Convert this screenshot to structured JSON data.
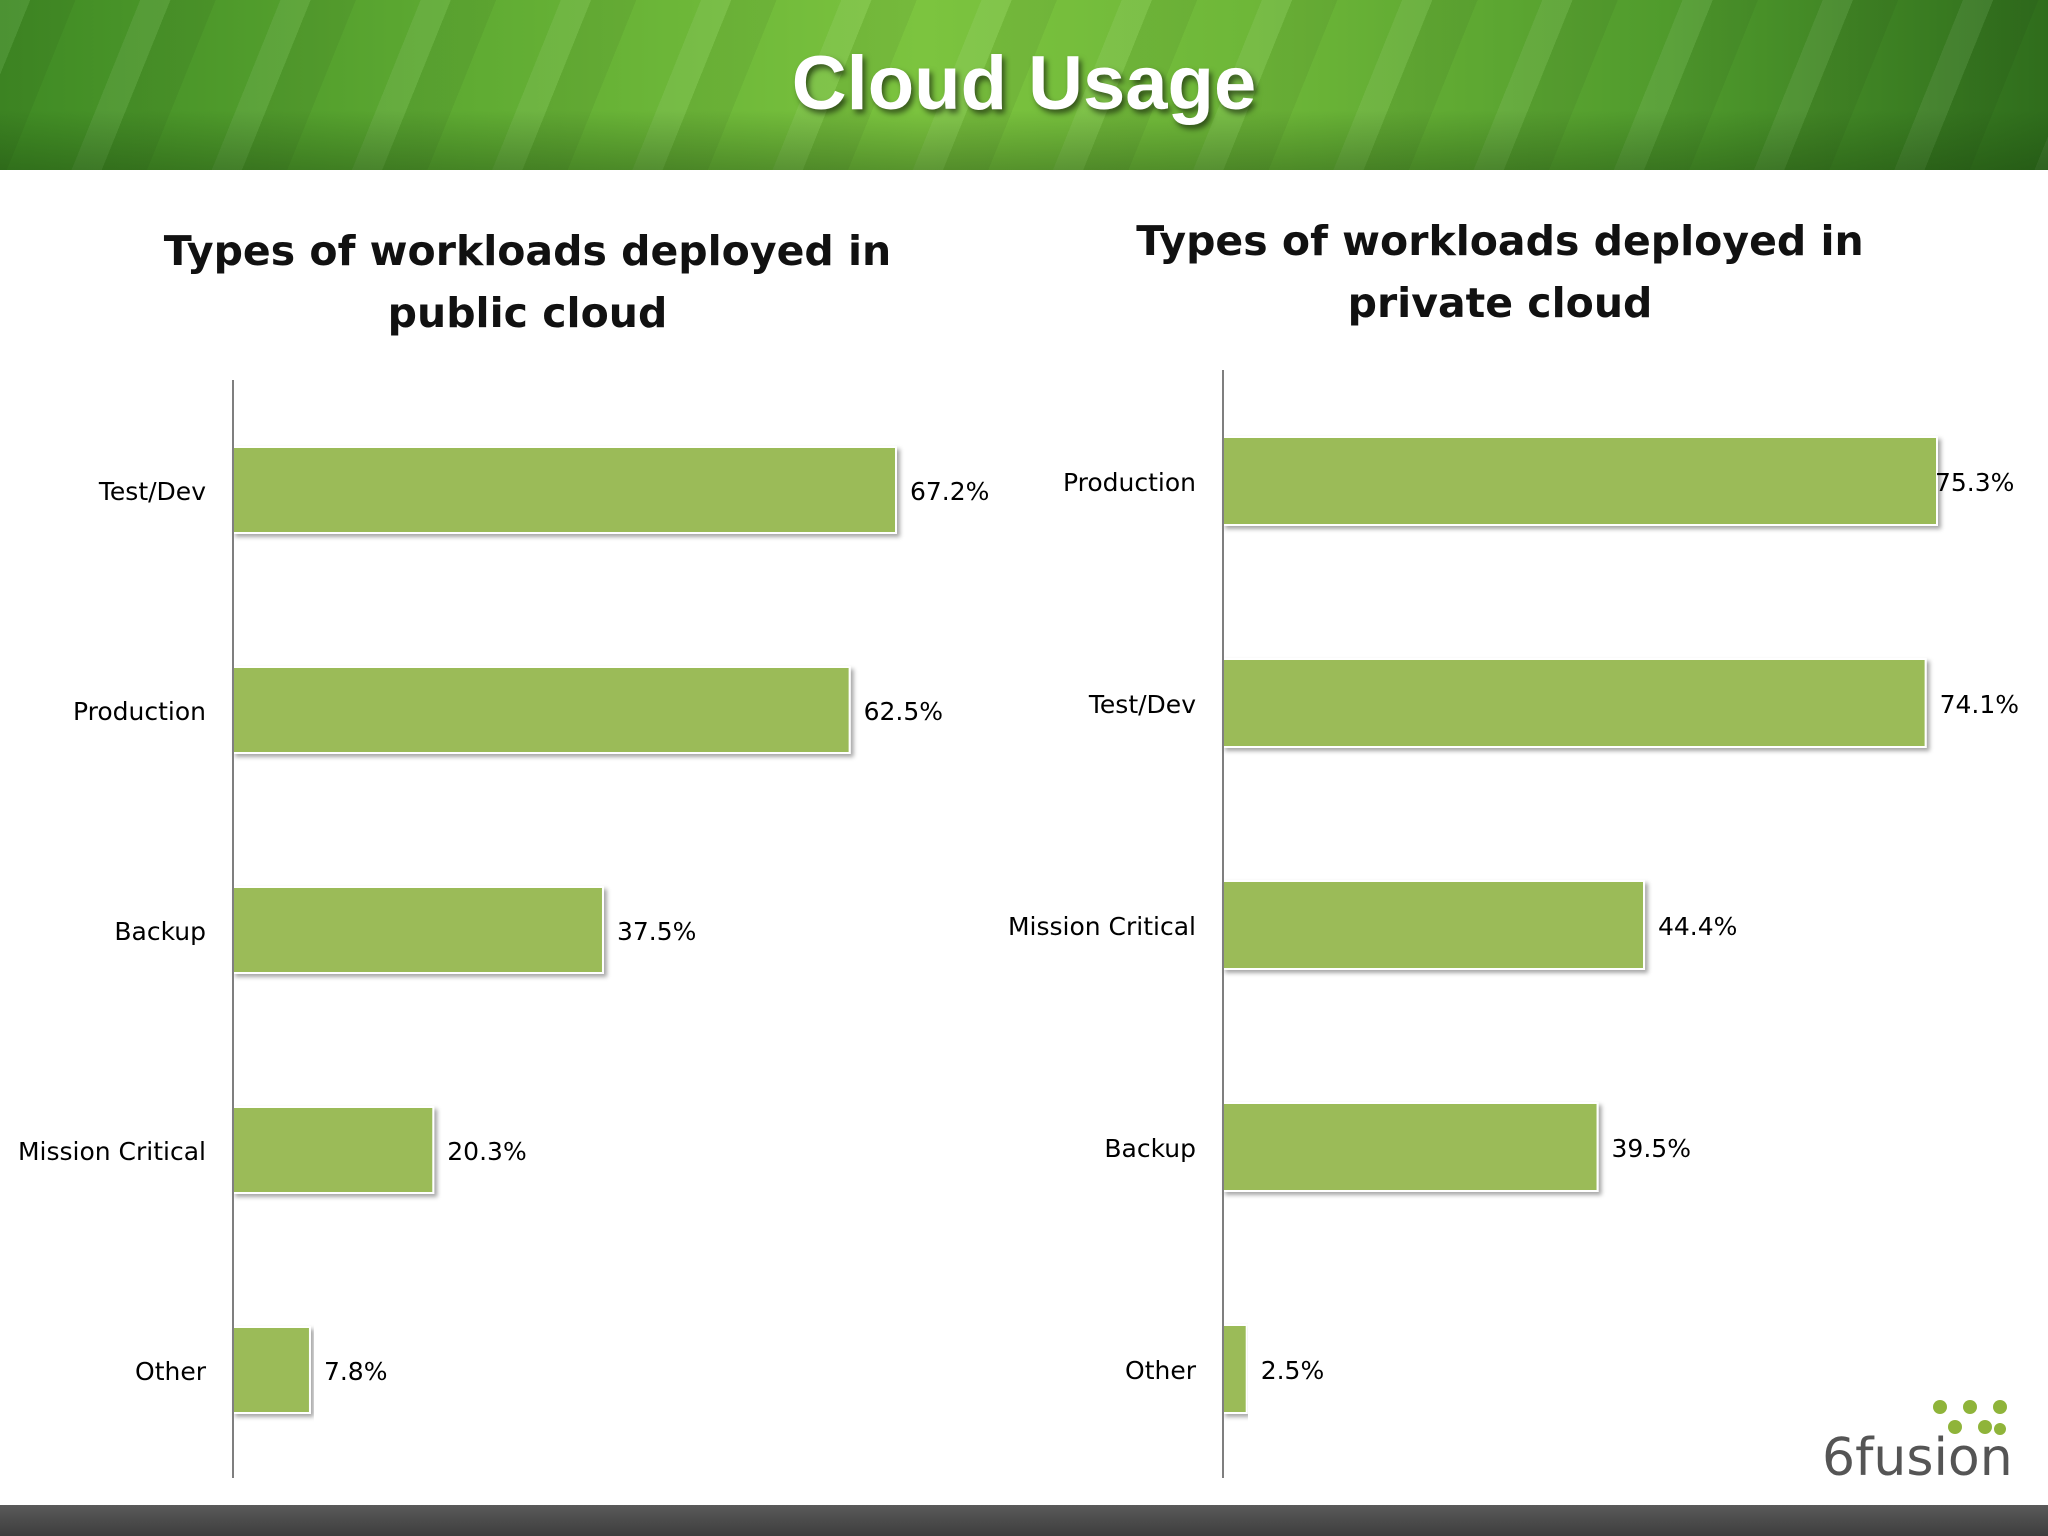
{
  "page": {
    "title": "Cloud Usage"
  },
  "logo": {
    "text": "6fusion"
  },
  "colors": {
    "bar": "#9bbb59",
    "axis": "#7f7f7f",
    "label": "#000000"
  },
  "chart_data": [
    {
      "type": "bar",
      "orientation": "horizontal",
      "title": "Types of workloads deployed in public cloud",
      "categories": [
        "Test/Dev",
        "Production",
        "Backup",
        "Mission Critical",
        "Other"
      ],
      "values": [
        67.2,
        62.5,
        37.5,
        20.3,
        7.8
      ],
      "value_labels": [
        "67.2%",
        "62.5%",
        "37.5%",
        "20.3%",
        "7.8%"
      ],
      "xlim": [
        0,
        100
      ],
      "grid": false,
      "legend": "none"
    },
    {
      "type": "bar",
      "orientation": "horizontal",
      "title": "Types of workloads deployed in private cloud",
      "categories": [
        "Production",
        "Test/Dev",
        "Mission Critical",
        "Backup",
        "Other"
      ],
      "values": [
        75.3,
        74.1,
        44.4,
        39.5,
        2.5
      ],
      "value_labels": [
        "75.3%",
        "74.1%",
        "44.4%",
        "39.5%",
        "2.5%"
      ],
      "xlim": [
        0,
        100
      ],
      "grid": false,
      "legend": "none"
    }
  ]
}
